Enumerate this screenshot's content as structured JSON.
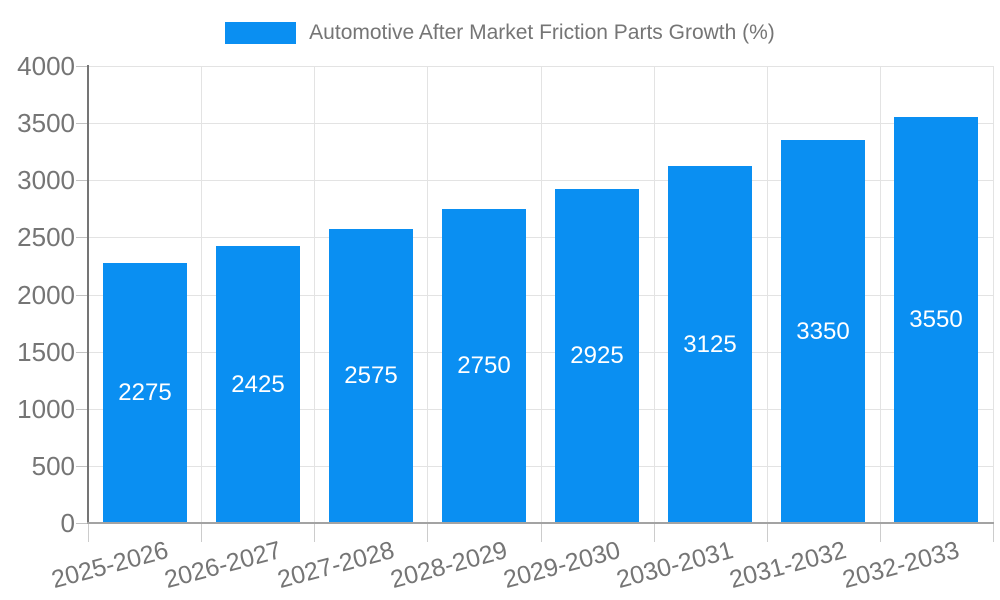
{
  "chart_data": {
    "type": "bar",
    "title": "Automotive After Market Friction Parts Growth (%)",
    "categories": [
      "2025-2026",
      "2026-2027",
      "2027-2028",
      "2028-2029",
      "2029-2030",
      "2030-2031",
      "2031-2032",
      "2032-2033"
    ],
    "values": [
      2275,
      2425,
      2575,
      2750,
      2925,
      3125,
      3350,
      3550
    ],
    "xlabel": "",
    "ylabel": "",
    "ylim": [
      0,
      4000
    ],
    "y_ticks": [
      0,
      500,
      1000,
      1500,
      2000,
      2500,
      3000,
      3500,
      4000
    ],
    "grid": true,
    "legend_position": "top-center",
    "bar_color": "#0a8ff2",
    "bar_label_color": "#ffffff",
    "axis_text_color": "#757575",
    "grid_color": "#e3e3e3"
  }
}
